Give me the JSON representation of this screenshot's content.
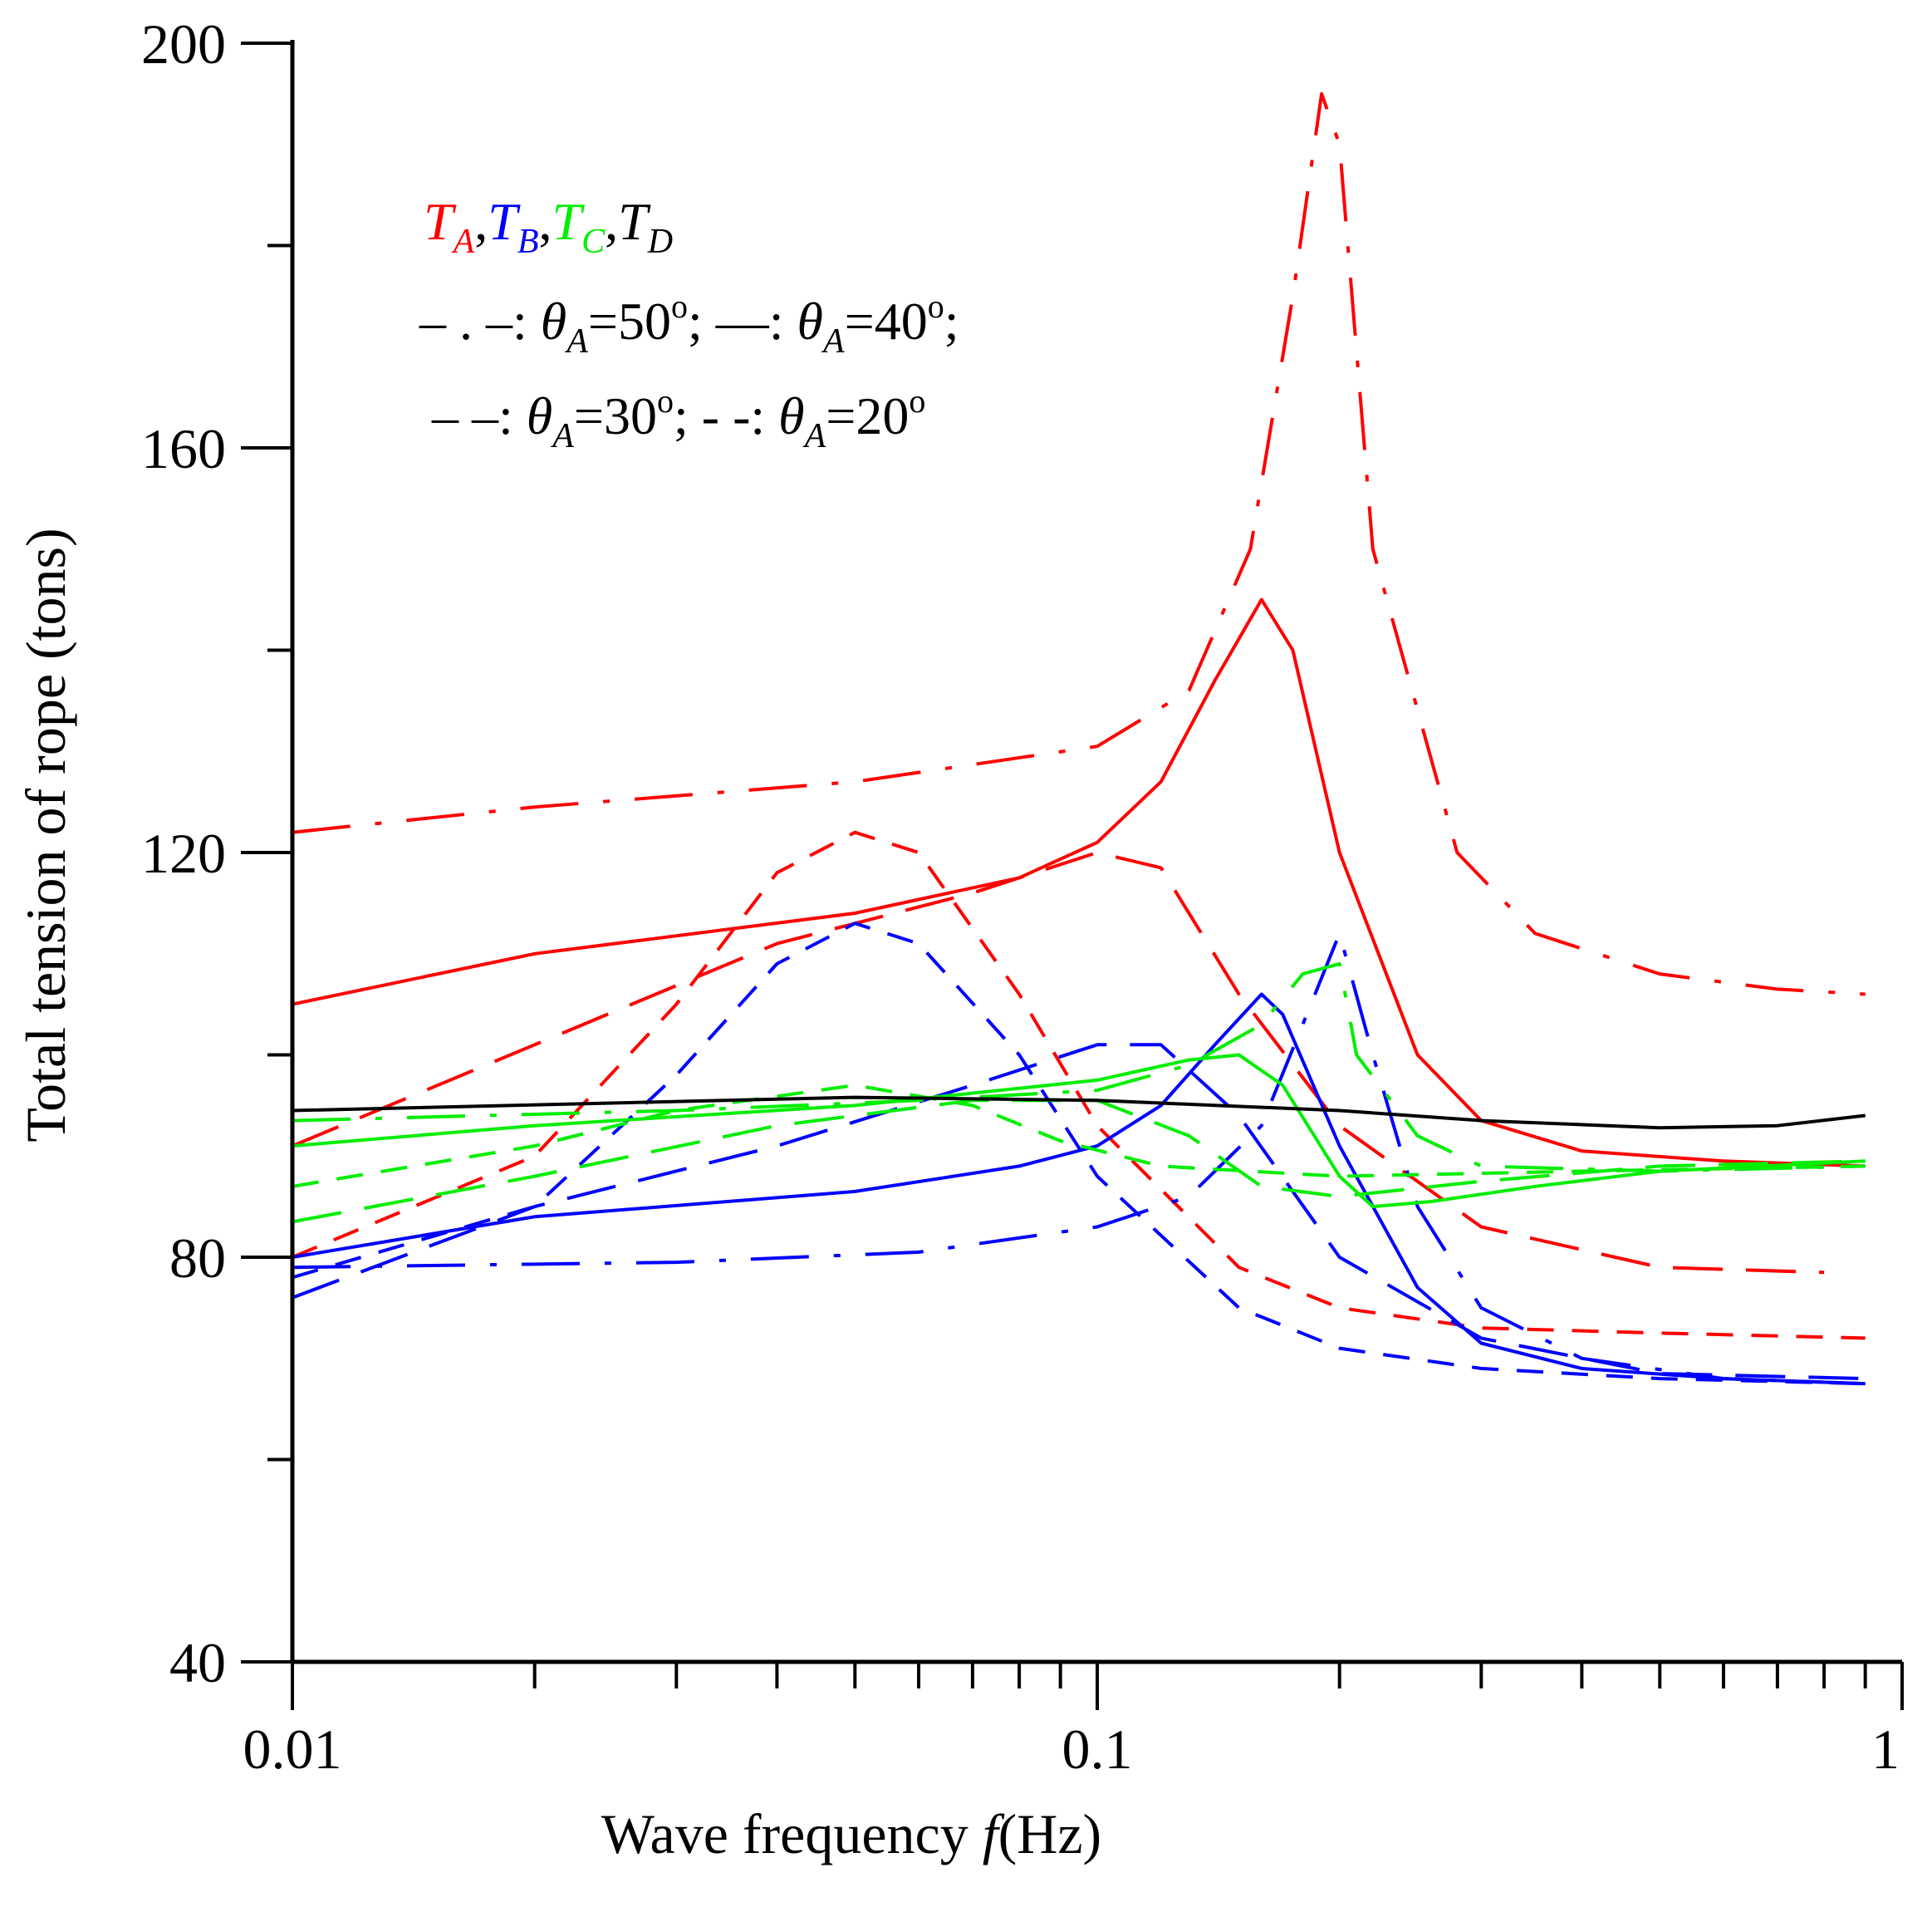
{
  "chart_data": {
    "type": "line",
    "xscale": "log",
    "xlabel_parts": [
      "Wave frequency ",
      "f",
      "(Hz)"
    ],
    "ylabel": "Total tension of rope (tons)",
    "xlim": [
      0.01,
      1
    ],
    "ylim": [
      40,
      200
    ],
    "xticks": [
      {
        "value": 0.01,
        "label": "0.01"
      },
      {
        "value": 0.1,
        "label": "0.1"
      },
      {
        "value": 1,
        "label": "1"
      }
    ],
    "yticks": [
      {
        "value": 40,
        "label": "40"
      },
      {
        "value": 80,
        "label": "80"
      },
      {
        "value": 120,
        "label": "120"
      },
      {
        "value": 160,
        "label": "160"
      },
      {
        "value": 200,
        "label": "200"
      }
    ],
    "legend": {
      "tensions": [
        {
          "symbol": "T",
          "sub": "A",
          "color": "#ff0000"
        },
        {
          "symbol": "T",
          "sub": "B",
          "color": "#0000ff"
        },
        {
          "symbol": "T",
          "sub": "C",
          "color": "#00ee00"
        },
        {
          "symbol": "T",
          "sub": "D",
          "color": "#000000"
        }
      ],
      "angles": [
        {
          "key": "50",
          "marker": "– . –:",
          "text": "=50",
          "deg": "o",
          "sep": ";"
        },
        {
          "key": "40",
          "marker": "—:",
          "text": "=40",
          "deg": "o",
          "sep": ";"
        },
        {
          "key": "30",
          "marker": "– –:",
          "text": "=30",
          "deg": "o",
          "sep": ";"
        },
        {
          "key": "20",
          "marker": "- -:",
          "text": "=20",
          "deg": "o",
          "sep": ""
        }
      ],
      "theta_symbol": "θ",
      "theta_sub": "A"
    },
    "series": [
      {
        "name": "T_A 50°",
        "color": "#ff0000",
        "style": "dashdot",
        "points": [
          [
            0.01,
            122
          ],
          [
            0.02,
            124.5
          ],
          [
            0.05,
            127
          ],
          [
            0.1,
            130.5
          ],
          [
            0.13,
            136
          ],
          [
            0.155,
            150
          ],
          [
            0.175,
            175
          ],
          [
            0.19,
            195
          ],
          [
            0.2,
            190
          ],
          [
            0.22,
            150
          ],
          [
            0.28,
            120
          ],
          [
            0.35,
            112
          ],
          [
            0.5,
            108
          ],
          [
            0.7,
            106.5
          ],
          [
            0.9,
            106
          ]
        ]
      },
      {
        "name": "T_A 40°",
        "color": "#ff0000",
        "style": "solid",
        "points": [
          [
            0.01,
            105
          ],
          [
            0.02,
            110
          ],
          [
            0.05,
            114
          ],
          [
            0.08,
            117.5
          ],
          [
            0.1,
            121
          ],
          [
            0.12,
            127
          ],
          [
            0.14,
            137
          ],
          [
            0.16,
            145
          ],
          [
            0.175,
            140
          ],
          [
            0.2,
            120
          ],
          [
            0.25,
            100
          ],
          [
            0.3,
            93.5
          ],
          [
            0.4,
            90.5
          ],
          [
            0.6,
            89.5
          ],
          [
            0.9,
            89
          ]
        ]
      },
      {
        "name": "T_A 30°",
        "color": "#ff0000",
        "style": "dash",
        "points": [
          [
            0.01,
            91
          ],
          [
            0.02,
            101
          ],
          [
            0.04,
            111
          ],
          [
            0.07,
            116
          ],
          [
            0.1,
            120
          ],
          [
            0.12,
            118.5
          ],
          [
            0.15,
            106
          ],
          [
            0.2,
            93
          ],
          [
            0.3,
            83
          ],
          [
            0.5,
            79
          ],
          [
            0.8,
            78.5
          ]
        ]
      },
      {
        "name": "T_A 20°",
        "color": "#ff0000",
        "style": "shortdash",
        "points": [
          [
            0.01,
            80
          ],
          [
            0.02,
            90
          ],
          [
            0.03,
            105
          ],
          [
            0.04,
            118
          ],
          [
            0.05,
            122
          ],
          [
            0.06,
            120
          ],
          [
            0.08,
            106
          ],
          [
            0.1,
            93
          ],
          [
            0.15,
            79
          ],
          [
            0.2,
            75
          ],
          [
            0.3,
            73
          ],
          [
            0.5,
            72.5
          ],
          [
            0.9,
            72
          ]
        ]
      },
      {
        "name": "T_B 50°",
        "color": "#0000ff",
        "style": "dashdot",
        "points": [
          [
            0.01,
            79
          ],
          [
            0.03,
            79.5
          ],
          [
            0.06,
            80.5
          ],
          [
            0.1,
            83
          ],
          [
            0.13,
            86
          ],
          [
            0.16,
            93
          ],
          [
            0.18,
            103
          ],
          [
            0.2,
            112
          ],
          [
            0.22,
            100
          ],
          [
            0.25,
            85
          ],
          [
            0.3,
            75
          ],
          [
            0.4,
            70
          ],
          [
            0.6,
            68
          ],
          [
            0.9,
            67.5
          ]
        ]
      },
      {
        "name": "T_B 40°",
        "color": "#0000ff",
        "style": "solid",
        "points": [
          [
            0.01,
            80
          ],
          [
            0.02,
            84
          ],
          [
            0.05,
            86.5
          ],
          [
            0.08,
            89
          ],
          [
            0.1,
            91
          ],
          [
            0.12,
            95
          ],
          [
            0.14,
            101
          ],
          [
            0.16,
            106
          ],
          [
            0.17,
            104
          ],
          [
            0.2,
            91
          ],
          [
            0.25,
            77
          ],
          [
            0.3,
            71.5
          ],
          [
            0.4,
            69
          ],
          [
            0.6,
            68
          ],
          [
            0.9,
            67.5
          ]
        ]
      },
      {
        "name": "T_B 30°",
        "color": "#0000ff",
        "style": "dash",
        "points": [
          [
            0.01,
            76
          ],
          [
            0.02,
            85
          ],
          [
            0.04,
            91
          ],
          [
            0.07,
            97
          ],
          [
            0.1,
            101
          ],
          [
            0.12,
            101
          ],
          [
            0.15,
            94
          ],
          [
            0.2,
            80
          ],
          [
            0.3,
            72
          ],
          [
            0.5,
            68.5
          ],
          [
            0.9,
            68
          ]
        ]
      },
      {
        "name": "T_B 20°",
        "color": "#0000ff",
        "style": "shortdash",
        "points": [
          [
            0.01,
            78
          ],
          [
            0.02,
            85
          ],
          [
            0.03,
            98
          ],
          [
            0.04,
            109
          ],
          [
            0.05,
            113
          ],
          [
            0.06,
            111
          ],
          [
            0.08,
            100
          ],
          [
            0.1,
            88
          ],
          [
            0.15,
            75
          ],
          [
            0.2,
            71
          ],
          [
            0.3,
            69
          ],
          [
            0.5,
            68
          ],
          [
            0.9,
            67.5
          ]
        ]
      },
      {
        "name": "T_C 50°",
        "color": "#00ee00",
        "style": "dashdot",
        "points": [
          [
            0.01,
            93.5
          ],
          [
            0.03,
            94.5
          ],
          [
            0.06,
            95.5
          ],
          [
            0.1,
            96.5
          ],
          [
            0.13,
            99
          ],
          [
            0.16,
            103
          ],
          [
            0.18,
            108
          ],
          [
            0.2,
            109
          ],
          [
            0.21,
            100
          ],
          [
            0.25,
            92
          ],
          [
            0.3,
            89
          ],
          [
            0.5,
            88.5
          ],
          [
            0.9,
            89
          ]
        ]
      },
      {
        "name": "T_C 40°",
        "color": "#00ee00",
        "style": "solid",
        "points": [
          [
            0.01,
            91
          ],
          [
            0.02,
            93
          ],
          [
            0.05,
            95
          ],
          [
            0.1,
            97.5
          ],
          [
            0.13,
            99.5
          ],
          [
            0.15,
            100
          ],
          [
            0.17,
            97
          ],
          [
            0.2,
            88
          ],
          [
            0.22,
            85
          ],
          [
            0.26,
            85.5
          ],
          [
            0.35,
            87
          ],
          [
            0.5,
            88.5
          ],
          [
            0.9,
            89.5
          ]
        ]
      },
      {
        "name": "T_C 30°",
        "color": "#00ee00",
        "style": "dash",
        "points": [
          [
            0.01,
            83.5
          ],
          [
            0.02,
            88
          ],
          [
            0.04,
            93
          ],
          [
            0.07,
            95.5
          ],
          [
            0.1,
            95.5
          ],
          [
            0.13,
            92
          ],
          [
            0.16,
            87
          ],
          [
            0.2,
            86
          ],
          [
            0.3,
            87.5
          ],
          [
            0.5,
            89
          ],
          [
            0.9,
            89.5
          ]
        ]
      },
      {
        "name": "T_C 20°",
        "color": "#00ee00",
        "style": "shortdash",
        "points": [
          [
            0.01,
            87
          ],
          [
            0.02,
            91
          ],
          [
            0.03,
            94.5
          ],
          [
            0.05,
            97
          ],
          [
            0.07,
            95
          ],
          [
            0.09,
            91.5
          ],
          [
            0.12,
            89
          ],
          [
            0.2,
            88
          ],
          [
            0.4,
            88.5
          ],
          [
            0.9,
            89
          ]
        ]
      },
      {
        "name": "T_D",
        "color": "#000000",
        "style": "solid",
        "points": [
          [
            0.01,
            94.5
          ],
          [
            0.05,
            95.8
          ],
          [
            0.1,
            95.5
          ],
          [
            0.2,
            94.5
          ],
          [
            0.3,
            93.5
          ],
          [
            0.5,
            92.8
          ],
          [
            0.7,
            93
          ],
          [
            0.9,
            94
          ]
        ]
      }
    ]
  }
}
